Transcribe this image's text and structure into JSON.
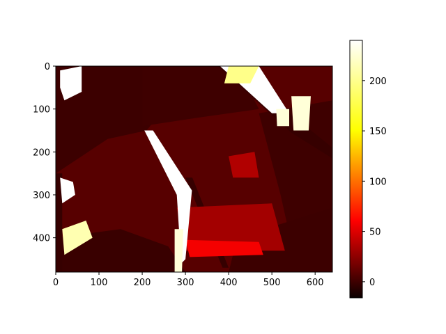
{
  "chart_data": {
    "type": "heatmap",
    "title": "",
    "xlabel": "",
    "ylabel": "",
    "colormap": "hot",
    "image_width": 640,
    "image_height": 480,
    "xlim": [
      0,
      640
    ],
    "ylim": [
      480,
      0
    ],
    "x_ticks": [
      0,
      100,
      200,
      300,
      400,
      500,
      600
    ],
    "y_ticks": [
      0,
      100,
      200,
      300,
      400
    ],
    "colorbar": {
      "range": [
        -16,
        240
      ],
      "ticks": [
        0,
        50,
        100,
        150,
        200
      ]
    },
    "regions": [
      {
        "name": "scene-base",
        "value": 12,
        "points": [
          [
            0,
            0
          ],
          [
            640,
            0
          ],
          [
            640,
            480
          ],
          [
            0,
            480
          ]
        ]
      },
      {
        "name": "dark-top-left",
        "value": 2,
        "points": [
          [
            0,
            0
          ],
          [
            330,
            0
          ],
          [
            210,
            150
          ],
          [
            120,
            170
          ],
          [
            0,
            250
          ]
        ]
      },
      {
        "name": "dark-top-band",
        "value": 3,
        "points": [
          [
            200,
            0
          ],
          [
            420,
            0
          ],
          [
            470,
            100
          ],
          [
            330,
            120
          ],
          [
            200,
            140
          ]
        ]
      },
      {
        "name": "dark-right-edge",
        "value": 3,
        "points": [
          [
            470,
            110
          ],
          [
            640,
            80
          ],
          [
            640,
            480
          ],
          [
            560,
            480
          ],
          [
            520,
            300
          ]
        ]
      },
      {
        "name": "dark-bottom-band",
        "value": 1,
        "points": [
          [
            0,
            400
          ],
          [
            150,
            380
          ],
          [
            260,
            420
          ],
          [
            300,
            480
          ],
          [
            0,
            480
          ]
        ]
      },
      {
        "name": "dark-bottom-right",
        "value": 2,
        "points": [
          [
            420,
            400
          ],
          [
            640,
            330
          ],
          [
            640,
            480
          ],
          [
            400,
            480
          ]
        ]
      },
      {
        "name": "dark-left-strip",
        "value": 0,
        "points": [
          [
            0,
            250
          ],
          [
            15,
            250
          ],
          [
            15,
            480
          ],
          [
            0,
            480
          ]
        ]
      },
      {
        "name": "dark-diagonal-pole",
        "value": 0,
        "points": [
          [
            300,
            260
          ],
          [
            316,
            260
          ],
          [
            400,
            470
          ],
          [
            386,
            470
          ]
        ]
      },
      {
        "name": "dark-diagonal-top",
        "value": 0,
        "points": [
          [
            375,
            0
          ],
          [
            405,
            0
          ],
          [
            640,
            190
          ],
          [
            640,
            215
          ],
          [
            545,
            155
          ]
        ]
      },
      {
        "name": "mid-red-floor",
        "value": 40,
        "points": [
          [
            280,
            330
          ],
          [
            500,
            320
          ],
          [
            530,
            430
          ],
          [
            300,
            430
          ]
        ]
      },
      {
        "name": "hot-floor-front",
        "value": 70,
        "points": [
          [
            300,
            405
          ],
          [
            470,
            410
          ],
          [
            480,
            440
          ],
          [
            310,
            445
          ]
        ]
      },
      {
        "name": "mid-red-patch-right",
        "value": 45,
        "points": [
          [
            400,
            210
          ],
          [
            460,
            200
          ],
          [
            470,
            260
          ],
          [
            410,
            260
          ]
        ]
      },
      {
        "name": "white-top-left",
        "value": 240,
        "points": [
          [
            10,
            10
          ],
          [
            60,
            0
          ],
          [
            60,
            60
          ],
          [
            20,
            80
          ],
          [
            10,
            50
          ]
        ]
      },
      {
        "name": "white-left-mid",
        "value": 240,
        "points": [
          [
            10,
            260
          ],
          [
            40,
            270
          ],
          [
            45,
            300
          ],
          [
            15,
            320
          ]
        ]
      },
      {
        "name": "yellow-bottom-left",
        "value": 220,
        "points": [
          [
            15,
            380
          ],
          [
            70,
            360
          ],
          [
            85,
            400
          ],
          [
            20,
            440
          ]
        ]
      },
      {
        "name": "white-top-right-glare",
        "value": 240,
        "points": [
          [
            380,
            0
          ],
          [
            470,
            0
          ],
          [
            540,
            110
          ],
          [
            500,
            110
          ]
        ]
      },
      {
        "name": "white-right-edge",
        "value": 230,
        "points": [
          [
            545,
            70
          ],
          [
            590,
            70
          ],
          [
            585,
            150
          ],
          [
            550,
            150
          ]
        ]
      },
      {
        "name": "yellow-top-mid",
        "value": 210,
        "points": [
          [
            400,
            0
          ],
          [
            470,
            0
          ],
          [
            450,
            40
          ],
          [
            390,
            40
          ]
        ]
      },
      {
        "name": "white-strip-curved",
        "value": 240,
        "points": [
          [
            205,
            150
          ],
          [
            225,
            150
          ],
          [
            315,
            290
          ],
          [
            300,
            450
          ],
          [
            290,
            460
          ],
          [
            280,
            300
          ]
        ]
      },
      {
        "name": "white-bottom-center",
        "value": 230,
        "points": [
          [
            275,
            380
          ],
          [
            295,
            380
          ],
          [
            292,
            480
          ],
          [
            275,
            480
          ]
        ]
      },
      {
        "name": "white-small-right",
        "value": 230,
        "points": [
          [
            510,
            100
          ],
          [
            540,
            100
          ],
          [
            540,
            140
          ],
          [
            512,
            140
          ]
        ]
      }
    ]
  }
}
